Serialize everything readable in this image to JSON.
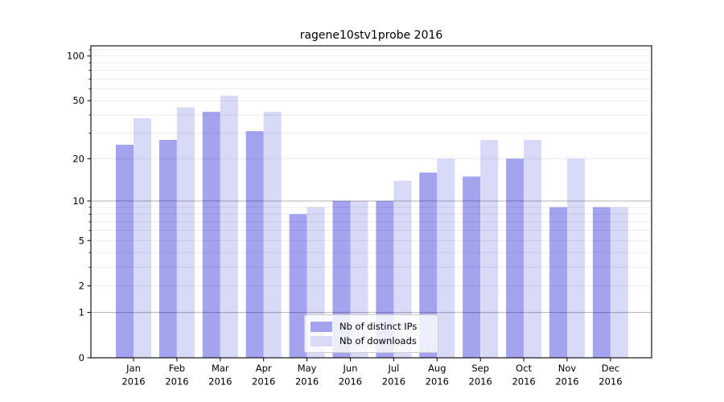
{
  "chart_data": {
    "type": "bar",
    "title": "ragene10stv1probe 2016",
    "categories": [
      "Jan",
      "Feb",
      "Mar",
      "Apr",
      "May",
      "Jun",
      "Jul",
      "Aug",
      "Sep",
      "Oct",
      "Nov",
      "Dec"
    ],
    "category_sub_label": "2016",
    "series": [
      {
        "name": "Nb of distinct IPs",
        "color": "#a3a3f0",
        "values": [
          25,
          27,
          42,
          31,
          8,
          10,
          10,
          16,
          15,
          20,
          9,
          9
        ]
      },
      {
        "name": "Nb of downloads",
        "color": "#d9d9f8",
        "values": [
          38,
          45,
          54,
          42,
          9,
          10,
          14,
          20,
          27,
          27,
          20,
          9
        ]
      }
    ],
    "xlabel": "",
    "ylabel": "",
    "yscale": "log1p",
    "ylim": [
      0,
      117
    ],
    "y_major_ticks": [
      0,
      1,
      2,
      5,
      10,
      20,
      50,
      100
    ],
    "y_minor_ticks": [
      3,
      4,
      6,
      7,
      8,
      9,
      30,
      40,
      60,
      70,
      80,
      90,
      110
    ],
    "grid": {
      "dark_lines": [
        1,
        10
      ],
      "light_lines": [
        2,
        3,
        4,
        5,
        6,
        7,
        8,
        9,
        20,
        30,
        40,
        50,
        60,
        70,
        80,
        90,
        100,
        110
      ],
      "dark_color": "rgba(0,0,0,0.30)",
      "light_color": "rgba(0,0,0,0.075)"
    },
    "legend": {
      "position": "lower center",
      "entries": [
        "Nb of distinct IPs",
        "Nb of downloads"
      ]
    },
    "colors": {
      "spine": "#000000",
      "text": "#000000",
      "background": "#ffffff"
    }
  }
}
